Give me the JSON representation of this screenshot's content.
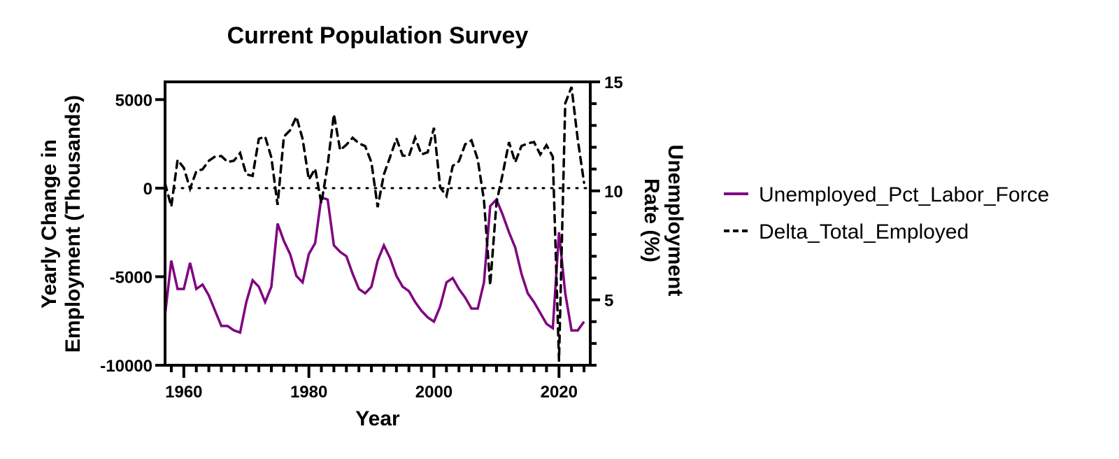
{
  "chart_data": {
    "type": "line",
    "title": "Current Population Survey",
    "xlabel": "Year",
    "ylabel": "Yearly Change in Employment (Thousands)",
    "ylabel_lines": [
      "Yearly Change in",
      "Employment (Thousands)"
    ],
    "y2label": "Unemployment Rate (%)",
    "y2label_lines": [
      "Unemployment",
      "Rate (%)"
    ],
    "xlim": [
      1957,
      2025
    ],
    "ylim": [
      -10000,
      6000
    ],
    "y2lim": [
      2,
      15
    ],
    "x_ticks": [
      1960,
      1980,
      2000,
      2020
    ],
    "x_tick_labels": [
      "1960",
      "1980",
      "2000",
      "2020"
    ],
    "y_ticks": [
      5000,
      0,
      -5000,
      -10000
    ],
    "y_tick_labels": [
      "5000",
      "0",
      "-5000",
      "-10000"
    ],
    "y2_ticks": [
      15,
      10,
      5
    ],
    "y2_tick_labels": [
      "15",
      "10",
      "5"
    ],
    "reference_line": {
      "axis": "left",
      "value": 0,
      "style": "dotted"
    },
    "legend_position": "right",
    "x": [
      1957,
      1958,
      1959,
      1960,
      1961,
      1962,
      1963,
      1964,
      1965,
      1966,
      1967,
      1968,
      1969,
      1970,
      1971,
      1972,
      1973,
      1974,
      1975,
      1976,
      1977,
      1978,
      1979,
      1980,
      1981,
      1982,
      1983,
      1984,
      1985,
      1986,
      1987,
      1988,
      1989,
      1990,
      1991,
      1992,
      1993,
      1994,
      1995,
      1996,
      1997,
      1998,
      1999,
      2000,
      2001,
      2002,
      2003,
      2004,
      2005,
      2006,
      2007,
      2008,
      2009,
      2010,
      2011,
      2012,
      2013,
      2014,
      2015,
      2016,
      2017,
      2018,
      2019,
      2020,
      2021,
      2022,
      2023,
      2024
    ],
    "series": [
      {
        "name": "Unemployed_Pct_Labor_Force",
        "axis": "right",
        "color": "#800080",
        "style": "solid",
        "values": [
          4.3,
          6.8,
          5.5,
          5.5,
          6.7,
          5.5,
          5.7,
          5.2,
          4.5,
          3.8,
          3.8,
          3.6,
          3.5,
          4.9,
          5.9,
          5.6,
          4.9,
          5.6,
          8.5,
          7.7,
          7.1,
          6.1,
          5.8,
          7.1,
          7.6,
          9.7,
          9.6,
          7.5,
          7.2,
          7.0,
          6.2,
          5.5,
          5.3,
          5.6,
          6.8,
          7.5,
          6.9,
          6.1,
          5.6,
          5.4,
          4.9,
          4.5,
          4.2,
          4.0,
          4.7,
          5.8,
          6.0,
          5.5,
          5.1,
          4.6,
          4.6,
          5.8,
          9.3,
          9.6,
          8.9,
          8.1,
          7.4,
          6.2,
          5.3,
          4.9,
          4.4,
          3.9,
          3.7,
          8.1,
          5.3,
          3.6,
          3.6,
          4.0
        ]
      },
      {
        "name": "Delta_Total_Employed",
        "axis": "left",
        "color": "#000000",
        "style": "dashed",
        "values": [
          272,
          -1035,
          1594,
          1148,
          -32,
          956,
          1060,
          1543,
          1783,
          1807,
          1477,
          1548,
          1982,
          776,
          689,
          2786,
          2911,
          1730,
          -948,
          2906,
          3265,
          4031,
          2776,
          479,
          1094,
          -871,
          1308,
          4171,
          2145,
          2447,
          2843,
          2528,
          2374,
          1451,
          -1075,
          774,
          1767,
          2801,
          1840,
          1808,
          2850,
          1905,
          2025,
          3403,
          42,
          -448,
          1251,
          1516,
          2478,
          2697,
          1620,
          -685,
          -5485,
          -813,
          805,
          2600,
          1460,
          2376,
          2529,
          2602,
          1901,
          2424,
          1777,
          -9743,
          4786,
          5710,
          2746,
          309
        ]
      }
    ]
  }
}
